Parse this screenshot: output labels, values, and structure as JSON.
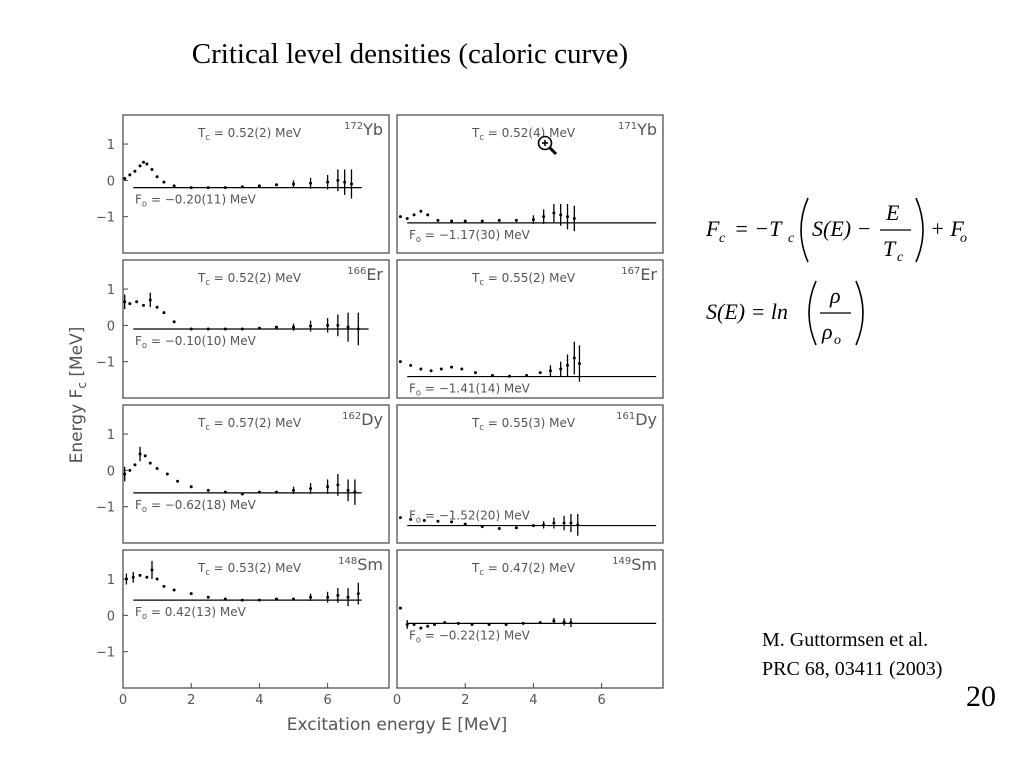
{
  "slide": {
    "title": "Critical level densities (caloric curve)",
    "citation_line1": "M. Guttormsen et al.",
    "citation_line2": "PRC 68, 03411 (2003)",
    "page_number": "20"
  },
  "equations": {
    "fc": {
      "lhs": "F",
      "lhs_sub": "c",
      "rhs1": "= −T",
      "rhs1_sub": "c",
      "s_of_e": "S(E) −",
      "frac_num": "E",
      "frac_den": "T",
      "frac_den_sub": "c",
      "tail": "+ F",
      "tail_sub": "o"
    },
    "se": {
      "lhs": "S(E) = ln",
      "frac_num": "ρ",
      "frac_den": "ρ",
      "frac_den_sub": "o"
    }
  },
  "chart_data": {
    "type": "scatter",
    "xlabel": "Excitation energy  E [MeV]",
    "ylabel_main": "Energy  F",
    "ylabel_sub": "c",
    "ylabel_unit": " [MeV]",
    "xlim": [
      0,
      7.8
    ],
    "ylim": [
      -2,
      1.8
    ],
    "y_ticks": [
      1,
      0,
      -1
    ],
    "x_ticks": [
      0,
      2,
      4,
      6
    ],
    "grid": false,
    "panels": [
      {
        "id": "172Yb",
        "mass": "172",
        "element": "Yb",
        "tc": "T_c = 0.52(2) MeV",
        "fo": "F_o = −0.20(11) MeV",
        "fo_value": -0.2,
        "emax": 7.0,
        "points": [
          [
            0.05,
            0.05
          ],
          [
            0.2,
            0.15
          ],
          [
            0.35,
            0.25
          ],
          [
            0.5,
            0.4
          ],
          [
            0.6,
            0.5
          ],
          [
            0.7,
            0.45
          ],
          [
            0.85,
            0.3
          ],
          [
            1.0,
            0.1
          ],
          [
            1.2,
            -0.05
          ],
          [
            1.5,
            -0.15
          ],
          [
            2.0,
            -0.2
          ],
          [
            2.5,
            -0.2
          ],
          [
            3.0,
            -0.2
          ],
          [
            3.5,
            -0.18
          ],
          [
            4.0,
            -0.15
          ],
          [
            4.5,
            -0.12
          ],
          [
            5.0,
            -0.1
          ],
          [
            5.5,
            -0.08
          ],
          [
            6.0,
            -0.05
          ],
          [
            6.3,
            0.0
          ],
          [
            6.5,
            -0.05
          ],
          [
            6.7,
            -0.1
          ]
        ],
        "errbars": [
          [
            5.0,
            -0.1,
            0.1
          ],
          [
            5.5,
            -0.08,
            0.15
          ],
          [
            6.0,
            -0.05,
            0.2
          ],
          [
            6.3,
            0.0,
            0.3
          ],
          [
            6.5,
            -0.05,
            0.35
          ],
          [
            6.7,
            -0.1,
            0.4
          ]
        ]
      },
      {
        "id": "171Yb",
        "mass": "171",
        "element": "Yb",
        "tc": "T_c = 0.52(4) MeV",
        "fo": "F_o = −1.17(30) MeV",
        "fo_value": -1.17,
        "emax": 7.6,
        "points": [
          [
            0.1,
            -1.0
          ],
          [
            0.3,
            -1.05
          ],
          [
            0.5,
            -0.95
          ],
          [
            0.7,
            -0.85
          ],
          [
            0.9,
            -0.95
          ],
          [
            1.2,
            -1.1
          ],
          [
            1.6,
            -1.12
          ],
          [
            2.0,
            -1.12
          ],
          [
            2.5,
            -1.12
          ],
          [
            3.0,
            -1.1
          ],
          [
            3.5,
            -1.1
          ],
          [
            4.0,
            -1.08
          ],
          [
            4.3,
            -1.0
          ],
          [
            4.6,
            -0.9
          ],
          [
            4.8,
            -0.95
          ],
          [
            5.0,
            -1.0
          ],
          [
            5.2,
            -1.05
          ]
        ],
        "errbars": [
          [
            4.0,
            -1.08,
            0.12
          ],
          [
            4.3,
            -1.0,
            0.2
          ],
          [
            4.6,
            -0.9,
            0.25
          ],
          [
            4.8,
            -0.95,
            0.3
          ],
          [
            5.0,
            -1.0,
            0.35
          ],
          [
            5.2,
            -1.05,
            0.35
          ]
        ]
      },
      {
        "id": "166Er",
        "mass": "166",
        "element": "Er",
        "tc": "T_c = 0.52(2) MeV",
        "fo": "F_o = −0.10(10) MeV",
        "fo_value": -0.1,
        "emax": 7.2,
        "points": [
          [
            0.05,
            0.65
          ],
          [
            0.2,
            0.6
          ],
          [
            0.4,
            0.65
          ],
          [
            0.6,
            0.55
          ],
          [
            0.8,
            0.7
          ],
          [
            1.0,
            0.5
          ],
          [
            1.2,
            0.35
          ],
          [
            1.5,
            0.1
          ],
          [
            2.0,
            -0.1
          ],
          [
            2.5,
            -0.1
          ],
          [
            3.0,
            -0.1
          ],
          [
            3.5,
            -0.1
          ],
          [
            4.0,
            -0.08
          ],
          [
            4.5,
            -0.05
          ],
          [
            5.0,
            -0.05
          ],
          [
            5.5,
            -0.02
          ],
          [
            6.0,
            0.0
          ],
          [
            6.3,
            0.0
          ],
          [
            6.6,
            -0.05
          ],
          [
            6.9,
            -0.1
          ]
        ],
        "errbars": [
          [
            0.05,
            0.65,
            0.2
          ],
          [
            0.8,
            0.7,
            0.2
          ],
          [
            5.0,
            -0.05,
            0.1
          ],
          [
            5.5,
            -0.02,
            0.15
          ],
          [
            6.0,
            0.0,
            0.2
          ],
          [
            6.3,
            0.0,
            0.3
          ],
          [
            6.6,
            -0.05,
            0.4
          ],
          [
            6.9,
            -0.1,
            0.45
          ]
        ]
      },
      {
        "id": "167Er",
        "mass": "167",
        "element": "Er",
        "tc": "T_c = 0.55(2) MeV",
        "fo": "F_o = −1.41(14) MeV",
        "fo_value": -1.41,
        "emax": 7.6,
        "points": [
          [
            0.1,
            -1.0
          ],
          [
            0.4,
            -1.1
          ],
          [
            0.7,
            -1.2
          ],
          [
            1.0,
            -1.25
          ],
          [
            1.3,
            -1.2
          ],
          [
            1.6,
            -1.15
          ],
          [
            1.9,
            -1.2
          ],
          [
            2.3,
            -1.3
          ],
          [
            2.8,
            -1.38
          ],
          [
            3.3,
            -1.4
          ],
          [
            3.8,
            -1.38
          ],
          [
            4.2,
            -1.3
          ],
          [
            4.5,
            -1.25
          ],
          [
            4.8,
            -1.2
          ],
          [
            5.0,
            -1.1
          ],
          [
            5.2,
            -0.9
          ],
          [
            5.35,
            -1.05
          ]
        ],
        "errbars": [
          [
            4.5,
            -1.25,
            0.15
          ],
          [
            4.8,
            -1.2,
            0.2
          ],
          [
            5.0,
            -1.1,
            0.3
          ],
          [
            5.2,
            -0.9,
            0.45
          ],
          [
            5.35,
            -1.05,
            0.5
          ]
        ]
      },
      {
        "id": "162Dy",
        "mass": "162",
        "element": "Dy",
        "tc": "T_c = 0.57(2) MeV",
        "fo": "F_o = −0.62(18) MeV",
        "fo_value": -0.62,
        "emax": 7.0,
        "points": [
          [
            0.05,
            -0.1
          ],
          [
            0.2,
            0.0
          ],
          [
            0.35,
            0.15
          ],
          [
            0.5,
            0.45
          ],
          [
            0.65,
            0.4
          ],
          [
            0.8,
            0.2
          ],
          [
            1.0,
            0.05
          ],
          [
            1.3,
            -0.1
          ],
          [
            1.6,
            -0.3
          ],
          [
            2.0,
            -0.45
          ],
          [
            2.5,
            -0.55
          ],
          [
            3.0,
            -0.6
          ],
          [
            3.5,
            -0.65
          ],
          [
            4.0,
            -0.6
          ],
          [
            4.5,
            -0.6
          ],
          [
            5.0,
            -0.55
          ],
          [
            5.5,
            -0.5
          ],
          [
            6.0,
            -0.45
          ],
          [
            6.3,
            -0.4
          ],
          [
            6.6,
            -0.55
          ],
          [
            6.8,
            -0.6
          ]
        ],
        "errbars": [
          [
            0.05,
            -0.1,
            0.2
          ],
          [
            0.5,
            0.45,
            0.2
          ],
          [
            5.0,
            -0.55,
            0.1
          ],
          [
            5.5,
            -0.5,
            0.15
          ],
          [
            6.0,
            -0.45,
            0.2
          ],
          [
            6.3,
            -0.4,
            0.3
          ],
          [
            6.6,
            -0.55,
            0.3
          ],
          [
            6.8,
            -0.6,
            0.35
          ]
        ]
      },
      {
        "id": "161Dy",
        "mass": "161",
        "element": "Dy",
        "tc": "T_c = 0.55(3) MeV",
        "fo": "F_o = −1.52(20) MeV",
        "fo_value": -1.52,
        "emax": 7.6,
        "points": [
          [
            0.1,
            -1.3
          ],
          [
            0.4,
            -1.35
          ],
          [
            0.8,
            -1.38
          ],
          [
            1.2,
            -1.4
          ],
          [
            1.6,
            -1.42
          ],
          [
            2.0,
            -1.48
          ],
          [
            2.5,
            -1.55
          ],
          [
            3.0,
            -1.6
          ],
          [
            3.5,
            -1.58
          ],
          [
            4.0,
            -1.52
          ],
          [
            4.3,
            -1.5
          ],
          [
            4.6,
            -1.45
          ],
          [
            4.9,
            -1.45
          ],
          [
            5.1,
            -1.45
          ],
          [
            5.3,
            -1.5
          ]
        ],
        "errbars": [
          [
            4.3,
            -1.5,
            0.1
          ],
          [
            4.6,
            -1.45,
            0.15
          ],
          [
            4.9,
            -1.45,
            0.2
          ],
          [
            5.1,
            -1.45,
            0.25
          ],
          [
            5.3,
            -1.5,
            0.3
          ]
        ]
      },
      {
        "id": "148Sm",
        "mass": "148",
        "element": "Sm",
        "tc": "T_c = 0.53(2) MeV",
        "fo": "F_o = 0.42(13) MeV",
        "fo_value": 0.42,
        "emax": 7.0,
        "points": [
          [
            0.1,
            1.0
          ],
          [
            0.3,
            1.05
          ],
          [
            0.5,
            1.1
          ],
          [
            0.7,
            1.05
          ],
          [
            0.85,
            1.25
          ],
          [
            1.0,
            1.0
          ],
          [
            1.2,
            0.8
          ],
          [
            1.5,
            0.7
          ],
          [
            2.0,
            0.6
          ],
          [
            2.5,
            0.5
          ],
          [
            3.0,
            0.45
          ],
          [
            3.5,
            0.42
          ],
          [
            4.0,
            0.42
          ],
          [
            4.5,
            0.45
          ],
          [
            5.0,
            0.45
          ],
          [
            5.5,
            0.5
          ],
          [
            6.0,
            0.5
          ],
          [
            6.3,
            0.55
          ],
          [
            6.6,
            0.5
          ],
          [
            6.9,
            0.6
          ]
        ],
        "errbars": [
          [
            0.1,
            1.0,
            0.15
          ],
          [
            0.3,
            1.05,
            0.15
          ],
          [
            0.85,
            1.25,
            0.25
          ],
          [
            5.5,
            0.5,
            0.1
          ],
          [
            6.0,
            0.5,
            0.15
          ],
          [
            6.3,
            0.55,
            0.2
          ],
          [
            6.6,
            0.5,
            0.25
          ],
          [
            6.9,
            0.6,
            0.3
          ]
        ]
      },
      {
        "id": "149Sm",
        "mass": "149",
        "element": "Sm",
        "tc": "T_c = 0.47(2) MeV",
        "fo": "F_o = −0.22(12) MeV",
        "fo_value": -0.22,
        "emax": 7.6,
        "points": [
          [
            0.1,
            0.2
          ],
          [
            0.3,
            -0.25
          ],
          [
            0.5,
            -0.25
          ],
          [
            0.7,
            -0.35
          ],
          [
            0.9,
            -0.3
          ],
          [
            1.1,
            -0.25
          ],
          [
            1.4,
            -0.2
          ],
          [
            1.8,
            -0.22
          ],
          [
            2.2,
            -0.25
          ],
          [
            2.7,
            -0.25
          ],
          [
            3.2,
            -0.25
          ],
          [
            3.7,
            -0.22
          ],
          [
            4.2,
            -0.2
          ],
          [
            4.6,
            -0.15
          ],
          [
            4.9,
            -0.18
          ],
          [
            5.1,
            -0.2
          ]
        ],
        "errbars": [
          [
            0.3,
            -0.25,
            0.12
          ],
          [
            4.6,
            -0.15,
            0.08
          ],
          [
            4.9,
            -0.18,
            0.1
          ],
          [
            5.1,
            -0.2,
            0.12
          ]
        ]
      }
    ]
  },
  "colors": {
    "axis": "#444444",
    "data": "#000000",
    "text": "#555555"
  }
}
